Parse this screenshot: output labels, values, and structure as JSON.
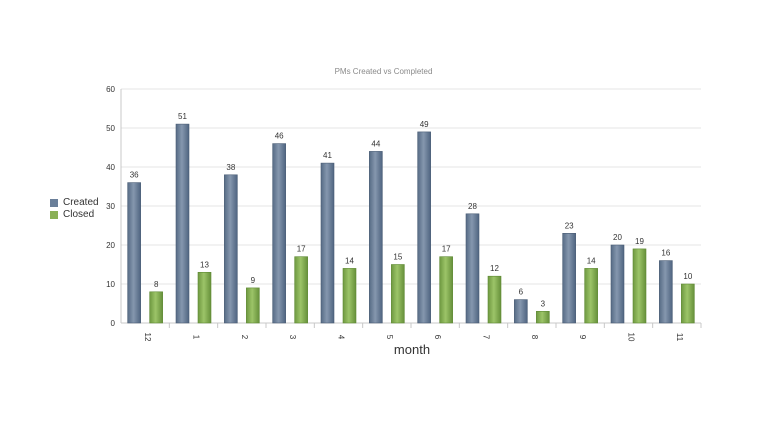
{
  "colors": {
    "created": "#6a7f99",
    "closed": "#8ab056",
    "grid": "#e6e6e6",
    "axis": "#c8c8c8",
    "label": "#333333"
  },
  "chart_data": {
    "type": "bar",
    "title": "PMs Created vs Completed",
    "xlabel": "month",
    "ylabel": "",
    "ylim": [
      0,
      60
    ],
    "yticks": [
      0,
      10,
      20,
      30,
      40,
      50,
      60
    ],
    "grid": true,
    "legend_position": "left",
    "categories": [
      "12",
      "1",
      "2",
      "3",
      "4",
      "5",
      "6",
      "7",
      "8",
      "9",
      "10",
      "11"
    ],
    "series": [
      {
        "name": "Created",
        "values": [
          36,
          51,
          38,
          46,
          41,
          44,
          49,
          28,
          6,
          23,
          20,
          16
        ]
      },
      {
        "name": "Closed",
        "values": [
          8,
          13,
          9,
          17,
          14,
          15,
          17,
          12,
          3,
          14,
          19,
          10
        ]
      }
    ]
  }
}
